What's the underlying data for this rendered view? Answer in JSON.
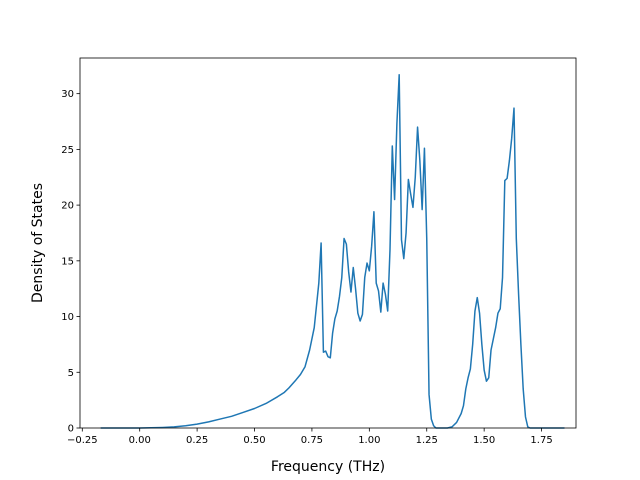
{
  "chart_data": {
    "type": "line",
    "title": "",
    "xlabel": "Frequency (THz)",
    "ylabel": "Density of States",
    "xlim": [
      -0.26,
      1.9
    ],
    "ylim": [
      0,
      33.2
    ],
    "xticks": [
      -0.25,
      0.0,
      0.25,
      0.5,
      0.75,
      1.0,
      1.25,
      1.5,
      1.75
    ],
    "xtick_labels": [
      "−0.25",
      "0.00",
      "0.25",
      "0.50",
      "0.75",
      "1.00",
      "1.25",
      "1.50",
      "1.75"
    ],
    "yticks": [
      0,
      5,
      10,
      15,
      20,
      25,
      30
    ],
    "ytick_labels": [
      "0",
      "5",
      "10",
      "15",
      "20",
      "25",
      "30"
    ],
    "grid": false,
    "line_color": "#1f77b4",
    "series": [
      {
        "x": [
          -0.17,
          -0.1,
          0.0,
          0.05,
          0.1,
          0.15,
          0.2,
          0.25,
          0.3,
          0.35,
          0.4,
          0.45,
          0.5,
          0.55,
          0.6,
          0.63,
          0.65,
          0.68,
          0.7,
          0.72,
          0.74,
          0.76,
          0.77,
          0.78,
          0.79,
          0.8,
          0.81,
          0.82,
          0.83,
          0.84,
          0.85,
          0.86,
          0.87,
          0.88,
          0.89,
          0.9,
          0.91,
          0.92,
          0.93,
          0.94,
          0.95,
          0.96,
          0.97,
          0.98,
          0.99,
          1.0,
          1.01,
          1.02,
          1.03,
          1.04,
          1.05,
          1.06,
          1.07,
          1.08,
          1.09,
          1.1,
          1.11,
          1.12,
          1.13,
          1.14,
          1.15,
          1.16,
          1.17,
          1.18,
          1.19,
          1.2,
          1.21,
          1.22,
          1.23,
          1.24,
          1.25,
          1.26,
          1.27,
          1.28,
          1.29,
          1.3,
          1.32,
          1.34,
          1.36,
          1.38,
          1.4,
          1.41,
          1.42,
          1.43,
          1.44,
          1.45,
          1.46,
          1.47,
          1.48,
          1.49,
          1.5,
          1.51,
          1.52,
          1.53,
          1.54,
          1.55,
          1.56,
          1.57,
          1.58,
          1.59,
          1.6,
          1.61,
          1.62,
          1.63,
          1.64,
          1.65,
          1.66,
          1.67,
          1.68,
          1.69,
          1.7,
          1.72,
          1.75,
          1.8,
          1.85
        ],
        "y": [
          0,
          0,
          0,
          0.02,
          0.05,
          0.1,
          0.2,
          0.35,
          0.55,
          0.8,
          1.05,
          1.4,
          1.75,
          2.2,
          2.8,
          3.2,
          3.6,
          4.3,
          4.8,
          5.5,
          7.0,
          9.0,
          11.0,
          13.0,
          16.6,
          6.8,
          6.9,
          6.4,
          6.3,
          8.5,
          9.8,
          10.5,
          11.8,
          13.5,
          17.0,
          16.5,
          14.0,
          12.2,
          14.4,
          12.5,
          10.3,
          9.6,
          10.2,
          13.5,
          14.8,
          14.1,
          16.3,
          19.4,
          13.0,
          12.3,
          10.4,
          13.0,
          12.0,
          10.5,
          16.0,
          25.3,
          20.5,
          27.3,
          31.7,
          16.9,
          15.2,
          17.5,
          22.3,
          21.0,
          19.8,
          22.5,
          27.0,
          24.0,
          19.6,
          25.1,
          17.0,
          3.0,
          0.8,
          0.2,
          0,
          0,
          0,
          0,
          0.1,
          0.5,
          1.3,
          2.0,
          3.5,
          4.5,
          5.3,
          7.5,
          10.5,
          11.7,
          10.3,
          7.5,
          5.2,
          4.2,
          4.5,
          7.0,
          8.0,
          9.0,
          10.3,
          10.7,
          13.5,
          22.2,
          22.4,
          24.0,
          26.0,
          28.7,
          17.0,
          12.0,
          7.5,
          3.5,
          1.0,
          0.1,
          0,
          0,
          0,
          0,
          0
        ]
      }
    ]
  }
}
